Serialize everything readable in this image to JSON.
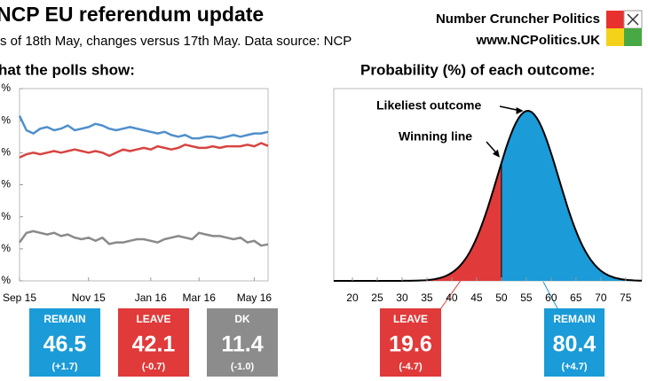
{
  "header": {
    "title": "NCP EU referendum update",
    "subtitle": "s of 18th May, changes versus 17th May. Data source: NCP",
    "brand": "Number Cruncher Politics",
    "url": "www.NCPolitics.UK"
  },
  "chart_data": [
    {
      "type": "line",
      "title": "hat the polls show:",
      "x": [
        0,
        1,
        2,
        3,
        4,
        5,
        6,
        7,
        8,
        9,
        10,
        11,
        12,
        13,
        14,
        15,
        16,
        17,
        18,
        19,
        20,
        21,
        22,
        23,
        24,
        25,
        26,
        27,
        28,
        29,
        30,
        31,
        32,
        33,
        34,
        35,
        36
      ],
      "xlim": [
        0,
        36
      ],
      "xticks": [
        {
          "value": 0,
          "label": "Sep 15"
        },
        {
          "value": 10,
          "label": "Nov 15"
        },
        {
          "value": 19,
          "label": "Jan 16"
        },
        {
          "value": 26,
          "label": "Mar 16"
        },
        {
          "value": 34,
          "label": "May 16"
        }
      ],
      "ylim": [
        0,
        60
      ],
      "yticks": [
        {
          "value": 0,
          "label": "%"
        },
        {
          "value": 10,
          "label": "%"
        },
        {
          "value": 20,
          "label": "%"
        },
        {
          "value": 30,
          "label": "%"
        },
        {
          "value": 40,
          "label": "%"
        },
        {
          "value": 50,
          "label": "%"
        },
        {
          "value": 60,
          "label": "%"
        }
      ],
      "series": [
        {
          "name": "REMAIN",
          "color": "#4f8fcc",
          "values": [
            51.5,
            47,
            46,
            47.5,
            48,
            47,
            47.5,
            48.5,
            47,
            47.5,
            48,
            49,
            48.5,
            47.5,
            47,
            47.5,
            48,
            47.5,
            47,
            46.5,
            46,
            46.5,
            45.5,
            45,
            45.5,
            44.5,
            44.5,
            45,
            45,
            44.5,
            45,
            45.5,
            45,
            45.5,
            46,
            46,
            46.5
          ]
        },
        {
          "name": "LEAVE",
          "color": "#d64541",
          "values": [
            38.5,
            39.5,
            40,
            39.5,
            40,
            40.5,
            40,
            40.5,
            41,
            40.5,
            40,
            40.5,
            40,
            39,
            40,
            41,
            40.5,
            41,
            41.5,
            41,
            42,
            41.5,
            41,
            41.5,
            42.5,
            42,
            41.5,
            41.5,
            42,
            41.5,
            42,
            42,
            42,
            42.5,
            42,
            43,
            42.1
          ]
        },
        {
          "name": "DK",
          "color": "#8a8a8a",
          "values": [
            12,
            15,
            15.5,
            15,
            14.5,
            15,
            14,
            14.5,
            13.5,
            13,
            13.5,
            12.5,
            13.5,
            11.5,
            12,
            12,
            12.5,
            13,
            13,
            12.5,
            12,
            13,
            13.5,
            14,
            13.5,
            13,
            15,
            14.5,
            14,
            14,
            13.5,
            13,
            13.5,
            12,
            12.5,
            11,
            11.4
          ]
        }
      ],
      "latest": [
        {
          "name": "REMAIN",
          "value": 46.5,
          "change": "(+1.7)",
          "color": "#1b9bd7"
        },
        {
          "name": "LEAVE",
          "value": 42.1,
          "change": "(-0.7)",
          "color": "#e03a3a"
        },
        {
          "name": "DK",
          "value": 11.4,
          "change": "(-1.0)",
          "color": "#8c8c8c"
        }
      ]
    },
    {
      "type": "distribution",
      "title": "Probability (%) of each outcome:",
      "xlim": [
        16.25,
        78.25
      ],
      "xticks": [
        20,
        25,
        30,
        35,
        40,
        45,
        50,
        55,
        60,
        65,
        70,
        75
      ],
      "mean": 55.3,
      "sd": 6.2,
      "threshold": 50,
      "annotations": [
        "Likeliest outcome",
        "Winning line"
      ],
      "outcomes": [
        {
          "name": "LEAVE",
          "value": 19.6,
          "change": "(-4.7)",
          "color": "#e03a3a"
        },
        {
          "name": "REMAIN",
          "value": 80.4,
          "change": "(+4.7)",
          "color": "#1b9bd7"
        }
      ]
    }
  ]
}
